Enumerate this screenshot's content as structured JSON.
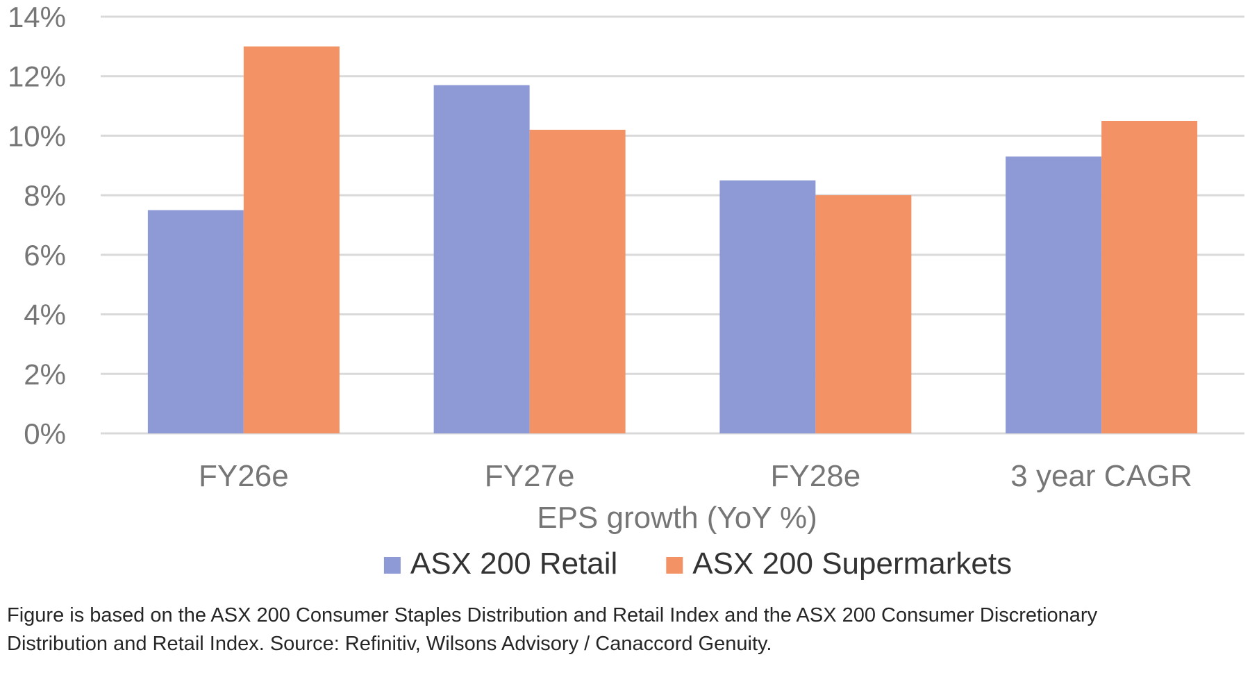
{
  "chart_data": {
    "type": "bar",
    "title": "",
    "xlabel": "EPS growth (YoY %)",
    "ylabel": "",
    "ylim": [
      0,
      14
    ],
    "yticks": [
      0,
      2,
      4,
      6,
      8,
      10,
      12,
      14
    ],
    "ytick_suffix": "%",
    "grid": true,
    "legend_position": "bottom",
    "categories": [
      "FY26e",
      "FY27e",
      "FY28e",
      "3 year CAGR"
    ],
    "series": [
      {
        "name": "ASX 200 Retail",
        "color": "#8e9ad6",
        "values": [
          7.5,
          11.7,
          8.5,
          9.3
        ]
      },
      {
        "name": "ASX 200 Supermarkets",
        "color": "#f39264",
        "values": [
          13.0,
          10.2,
          8.0,
          10.5
        ]
      }
    ]
  },
  "caption": {
    "line1": "Figure is based on the ASX 200 Consumer Staples Distribution and Retail Index and the ASX 200 Consumer Discretionary",
    "line2": "Distribution and Retail Index. Source: Refinitiv, Wilsons Advisory / Canaccord Genuity."
  }
}
